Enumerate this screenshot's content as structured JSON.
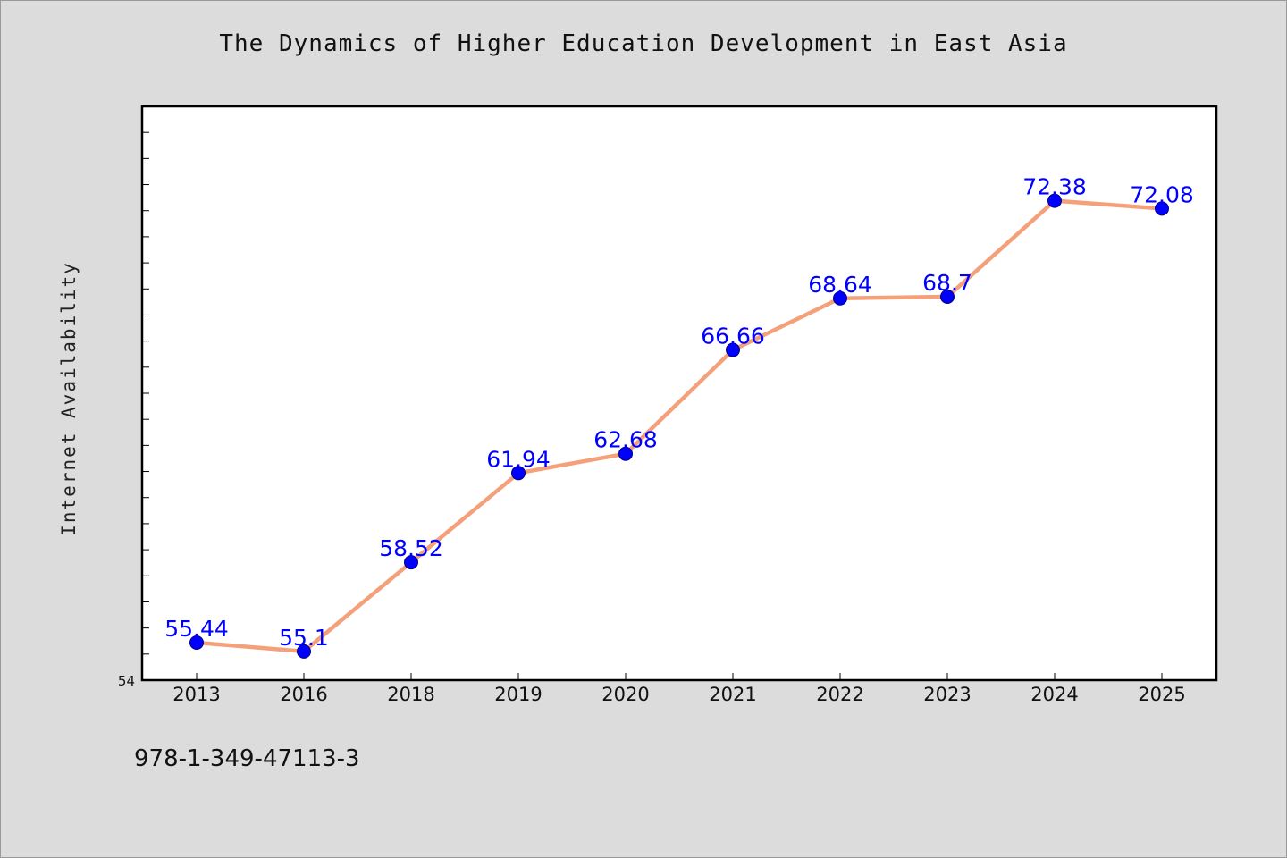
{
  "chart_data": {
    "type": "line",
    "title": "The Dynamics of Higher Education Development in East Asia",
    "xlabel": "",
    "ylabel": "Internet Availability",
    "categories": [
      "2013",
      "2016",
      "2018",
      "2019",
      "2020",
      "2021",
      "2022",
      "2023",
      "2024",
      "2025"
    ],
    "series": [
      {
        "values": [
          55.44,
          55.1,
          58.52,
          61.94,
          62.68,
          66.66,
          68.64,
          68.7,
          72.38,
          72.08
        ],
        "labels": [
          "55.44",
          "55.1",
          "58.52",
          "61.94",
          "62.68",
          "66.66",
          "68.64",
          "68.7",
          "72.38",
          "72.08"
        ]
      }
    ],
    "ylim": [
      54,
      76
    ],
    "y_tick_labels": [
      "54"
    ],
    "grid": false,
    "legend": "none",
    "colors": {
      "line": "#f4a07a",
      "marker": "#0000ff",
      "marker_edge": "#000080",
      "data_label": "#0000ff",
      "plot_background": "#ffffff",
      "page_background": "#dcdcdc"
    }
  },
  "footer": {
    "code": "978-1-349-47113-3"
  }
}
